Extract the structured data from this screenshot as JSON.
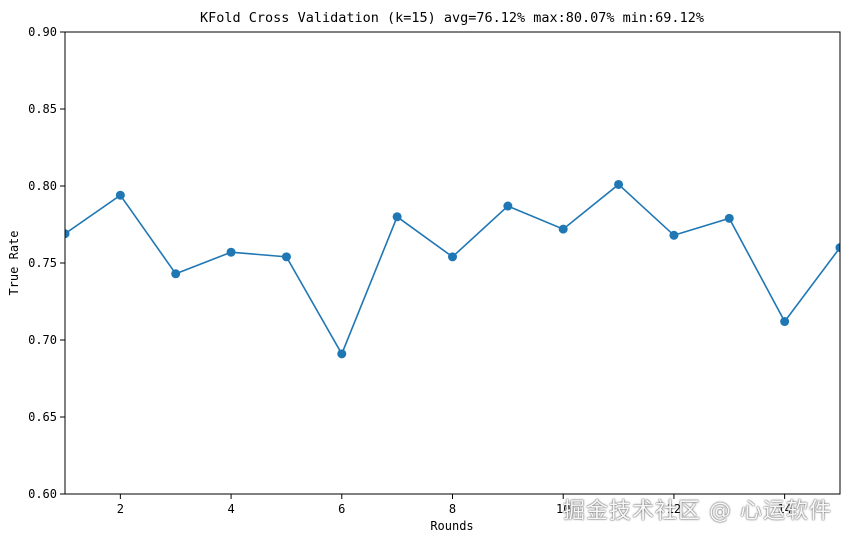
{
  "chart_data": {
    "type": "line",
    "title": "KFold Cross Validation (k=15) avg=76.12% max:80.07% min:69.12%",
    "xlabel": "Rounds",
    "ylabel": "True Rate",
    "xlim": [
      1,
      15
    ],
    "ylim": [
      0.6,
      0.9
    ],
    "xticks": [
      2,
      4,
      6,
      8,
      10,
      12,
      14
    ],
    "yticks": [
      "0.60",
      "0.65",
      "0.70",
      "0.75",
      "0.80",
      "0.85",
      "0.90"
    ],
    "series": [
      {
        "x": [
          1,
          2,
          3,
          4,
          5,
          6,
          7,
          8,
          9,
          10,
          11,
          12,
          13,
          14,
          15
        ],
        "values": [
          0.769,
          0.794,
          0.743,
          0.757,
          0.754,
          0.691,
          0.78,
          0.754,
          0.787,
          0.772,
          0.801,
          0.768,
          0.779,
          0.712,
          0.76
        ],
        "color": "#1f77b4",
        "marker": "circle"
      }
    ],
    "grid": false
  },
  "watermark": "掘金技术社区 @ 心运软件"
}
